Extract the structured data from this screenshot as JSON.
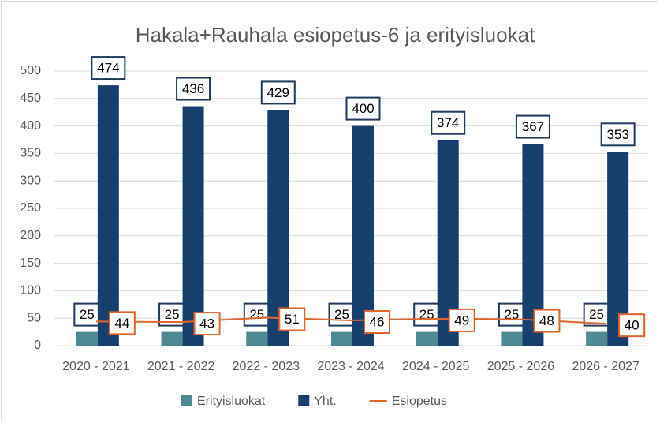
{
  "chart_data": {
    "type": "bar",
    "title": "Hakala+Rauhala esiopetus-6 ja erityisluokat",
    "categories": [
      "2020 - 2021",
      "2021 - 2022",
      "2022 - 2023",
      "2023 - 2024",
      "2024 - 2025",
      "2025 - 2026",
      "2026 - 2027"
    ],
    "series": [
      {
        "name": "Erityisluokat",
        "type": "bar",
        "color": "#4e8a94",
        "values": [
          25,
          25,
          25,
          25,
          25,
          25,
          25
        ]
      },
      {
        "name": "Yht.",
        "type": "bar",
        "color": "#173f6d",
        "values": [
          474,
          436,
          429,
          400,
          374,
          367,
          353
        ]
      },
      {
        "name": "Esiopetus",
        "type": "line",
        "color": "#e2652b",
        "values": [
          44,
          43,
          51,
          46,
          49,
          48,
          40
        ]
      }
    ],
    "ylim": [
      0,
      500
    ],
    "yticks": [
      0,
      50,
      100,
      150,
      200,
      250,
      300,
      350,
      400,
      450,
      500
    ],
    "grid": true,
    "legend": "bottom"
  }
}
